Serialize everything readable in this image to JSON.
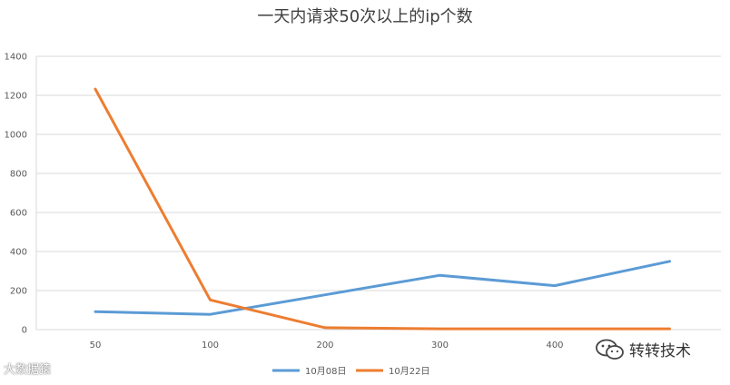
{
  "chart_data": {
    "type": "line",
    "title": "一天内请求50次以上的ip个数",
    "xlabel": "",
    "ylabel": "",
    "categories": [
      "50",
      "100",
      "200",
      "300",
      "400",
      "500"
    ],
    "x_tick_labels": [
      "50",
      "100",
      "200",
      "300",
      "400"
    ],
    "series": [
      {
        "name": "10月08日",
        "color": "#5b9bd5",
        "values": [
          92,
          78,
          178,
          278,
          225,
          350
        ]
      },
      {
        "name": "10月22日",
        "color": "#ed7d31",
        "values": [
          1232,
          152,
          10,
          4,
          4,
          4
        ]
      }
    ],
    "ylim": [
      0,
      1400
    ],
    "y_ticks": [
      0,
      200,
      400,
      600,
      800,
      1000,
      1200,
      1400
    ],
    "grid": true,
    "legend_position": "bottom"
  },
  "watermarks": {
    "left_text": "大数据猿",
    "right_text": "转转技术",
    "right_icon": "wechat-icon"
  }
}
